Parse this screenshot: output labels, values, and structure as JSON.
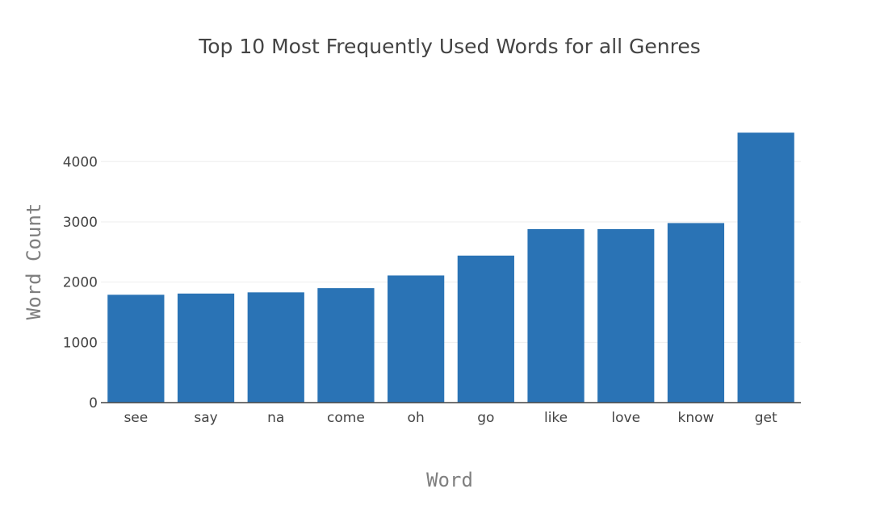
{
  "chart_data": {
    "type": "bar",
    "title": "Top 10 Most Frequently Used Words for all Genres",
    "xlabel": "Word",
    "ylabel": "Word Count",
    "categories": [
      "see",
      "say",
      "na",
      "come",
      "oh",
      "go",
      "like",
      "love",
      "know",
      "get"
    ],
    "values": [
      1790,
      1810,
      1830,
      1900,
      2110,
      2440,
      2880,
      2880,
      2980,
      4480
    ],
    "ylim": [
      0,
      4700
    ],
    "yticks": [
      0,
      1000,
      2000,
      3000,
      4000
    ],
    "ytick_labels": [
      "0",
      "1000",
      "2000",
      "3000",
      "4000"
    ],
    "grid": true,
    "legend": "none",
    "bar_color": "#2a73b5"
  }
}
